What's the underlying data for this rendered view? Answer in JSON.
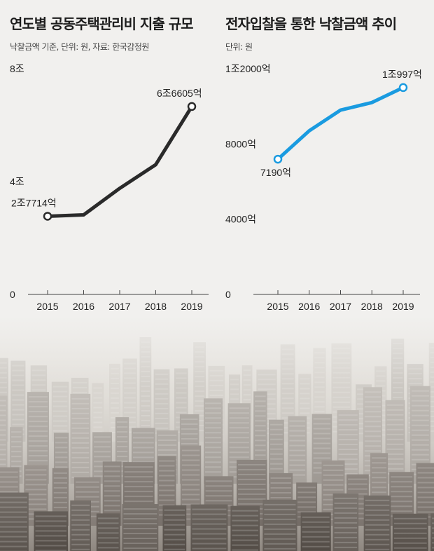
{
  "colors": {
    "left_line": "#2a2a2a",
    "right_line": "#1a9be0",
    "axis": "#444444",
    "background": "#f1f0ee"
  },
  "chart_data": [
    {
      "type": "line",
      "title": "연도별 공동주택관리비 지출 규모",
      "note": "낙찰금액 기준, 단위: 원, 자료: 한국감정원",
      "x": [
        "2015",
        "2016",
        "2017",
        "2018",
        "2019"
      ],
      "values": [
        2.7714,
        2.82,
        3.76,
        4.6,
        6.6605
      ],
      "value_unit": "조원",
      "ylim": [
        0,
        8
      ],
      "yticks": [
        0,
        4,
        8
      ],
      "ytick_labels": [
        "0",
        "4조",
        "8조"
      ],
      "data_labels": [
        {
          "index": 0,
          "text": "2조7714억"
        },
        {
          "index": 4,
          "text": "6조6605억"
        }
      ],
      "grid": false,
      "line_color": "#2a2a2a"
    },
    {
      "type": "line",
      "title": "전자입찰을 통한 낙찰금액 추이",
      "note": "단위: 원",
      "x": [
        "2015",
        "2016",
        "2017",
        "2018",
        "2019"
      ],
      "values": [
        7190,
        8700,
        9800,
        10200,
        10997
      ],
      "value_unit": "억원",
      "ylim": [
        0,
        12000
      ],
      "yticks": [
        0,
        4000,
        8000,
        12000
      ],
      "ytick_labels": [
        "0",
        "4000억",
        "8000억",
        "1조2000억"
      ],
      "data_labels": [
        {
          "index": 0,
          "text": "7190억"
        },
        {
          "index": 4,
          "text": "1조997억"
        }
      ],
      "grid": false,
      "line_color": "#1a9be0"
    }
  ]
}
